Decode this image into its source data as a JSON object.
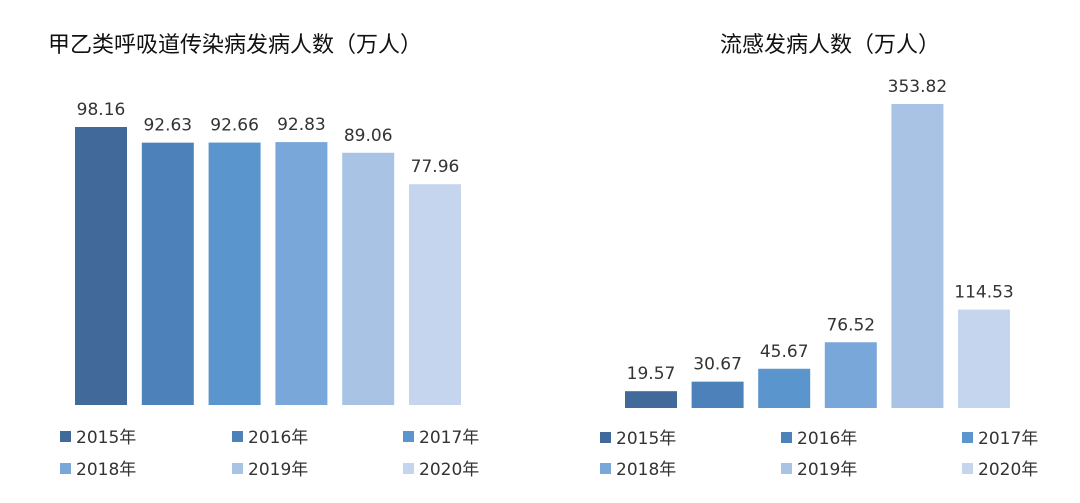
{
  "chart_data": [
    {
      "type": "bar",
      "title": "甲乙类呼吸道传染病发病人数（万人）",
      "categories": [
        "2015年",
        "2016年",
        "2017年",
        "2018年",
        "2019年",
        "2020年"
      ],
      "values": [
        98.16,
        92.63,
        92.66,
        92.83,
        89.06,
        77.96
      ],
      "value_labels": [
        "98.16",
        "92.63",
        "92.66",
        "92.83",
        "89.06",
        "77.96"
      ],
      "colors": [
        "#41699a",
        "#4d81b9",
        "#5b95cd",
        "#7aa7d9",
        "#a9c3e5",
        "#c6d5ee"
      ],
      "ylim": [
        0,
        98.16
      ],
      "grid": false,
      "legend": "bottom"
    },
    {
      "type": "bar",
      "title": "流感发病人数（万人）",
      "categories": [
        "2015年",
        "2016年",
        "2017年",
        "2018年",
        "2019年",
        "2020年"
      ],
      "values": [
        19.57,
        30.67,
        45.67,
        76.52,
        353.82,
        114.53
      ],
      "value_labels": [
        "19.57",
        "30.67",
        "45.67",
        "76.52",
        "353.82",
        "114.53"
      ],
      "colors": [
        "#41699a",
        "#4d81b9",
        "#5b95cd",
        "#7aa7d9",
        "#a9c3e5",
        "#c6d5ee"
      ],
      "ylim": [
        0,
        353.82
      ],
      "grid": false,
      "legend": "bottom"
    }
  ]
}
